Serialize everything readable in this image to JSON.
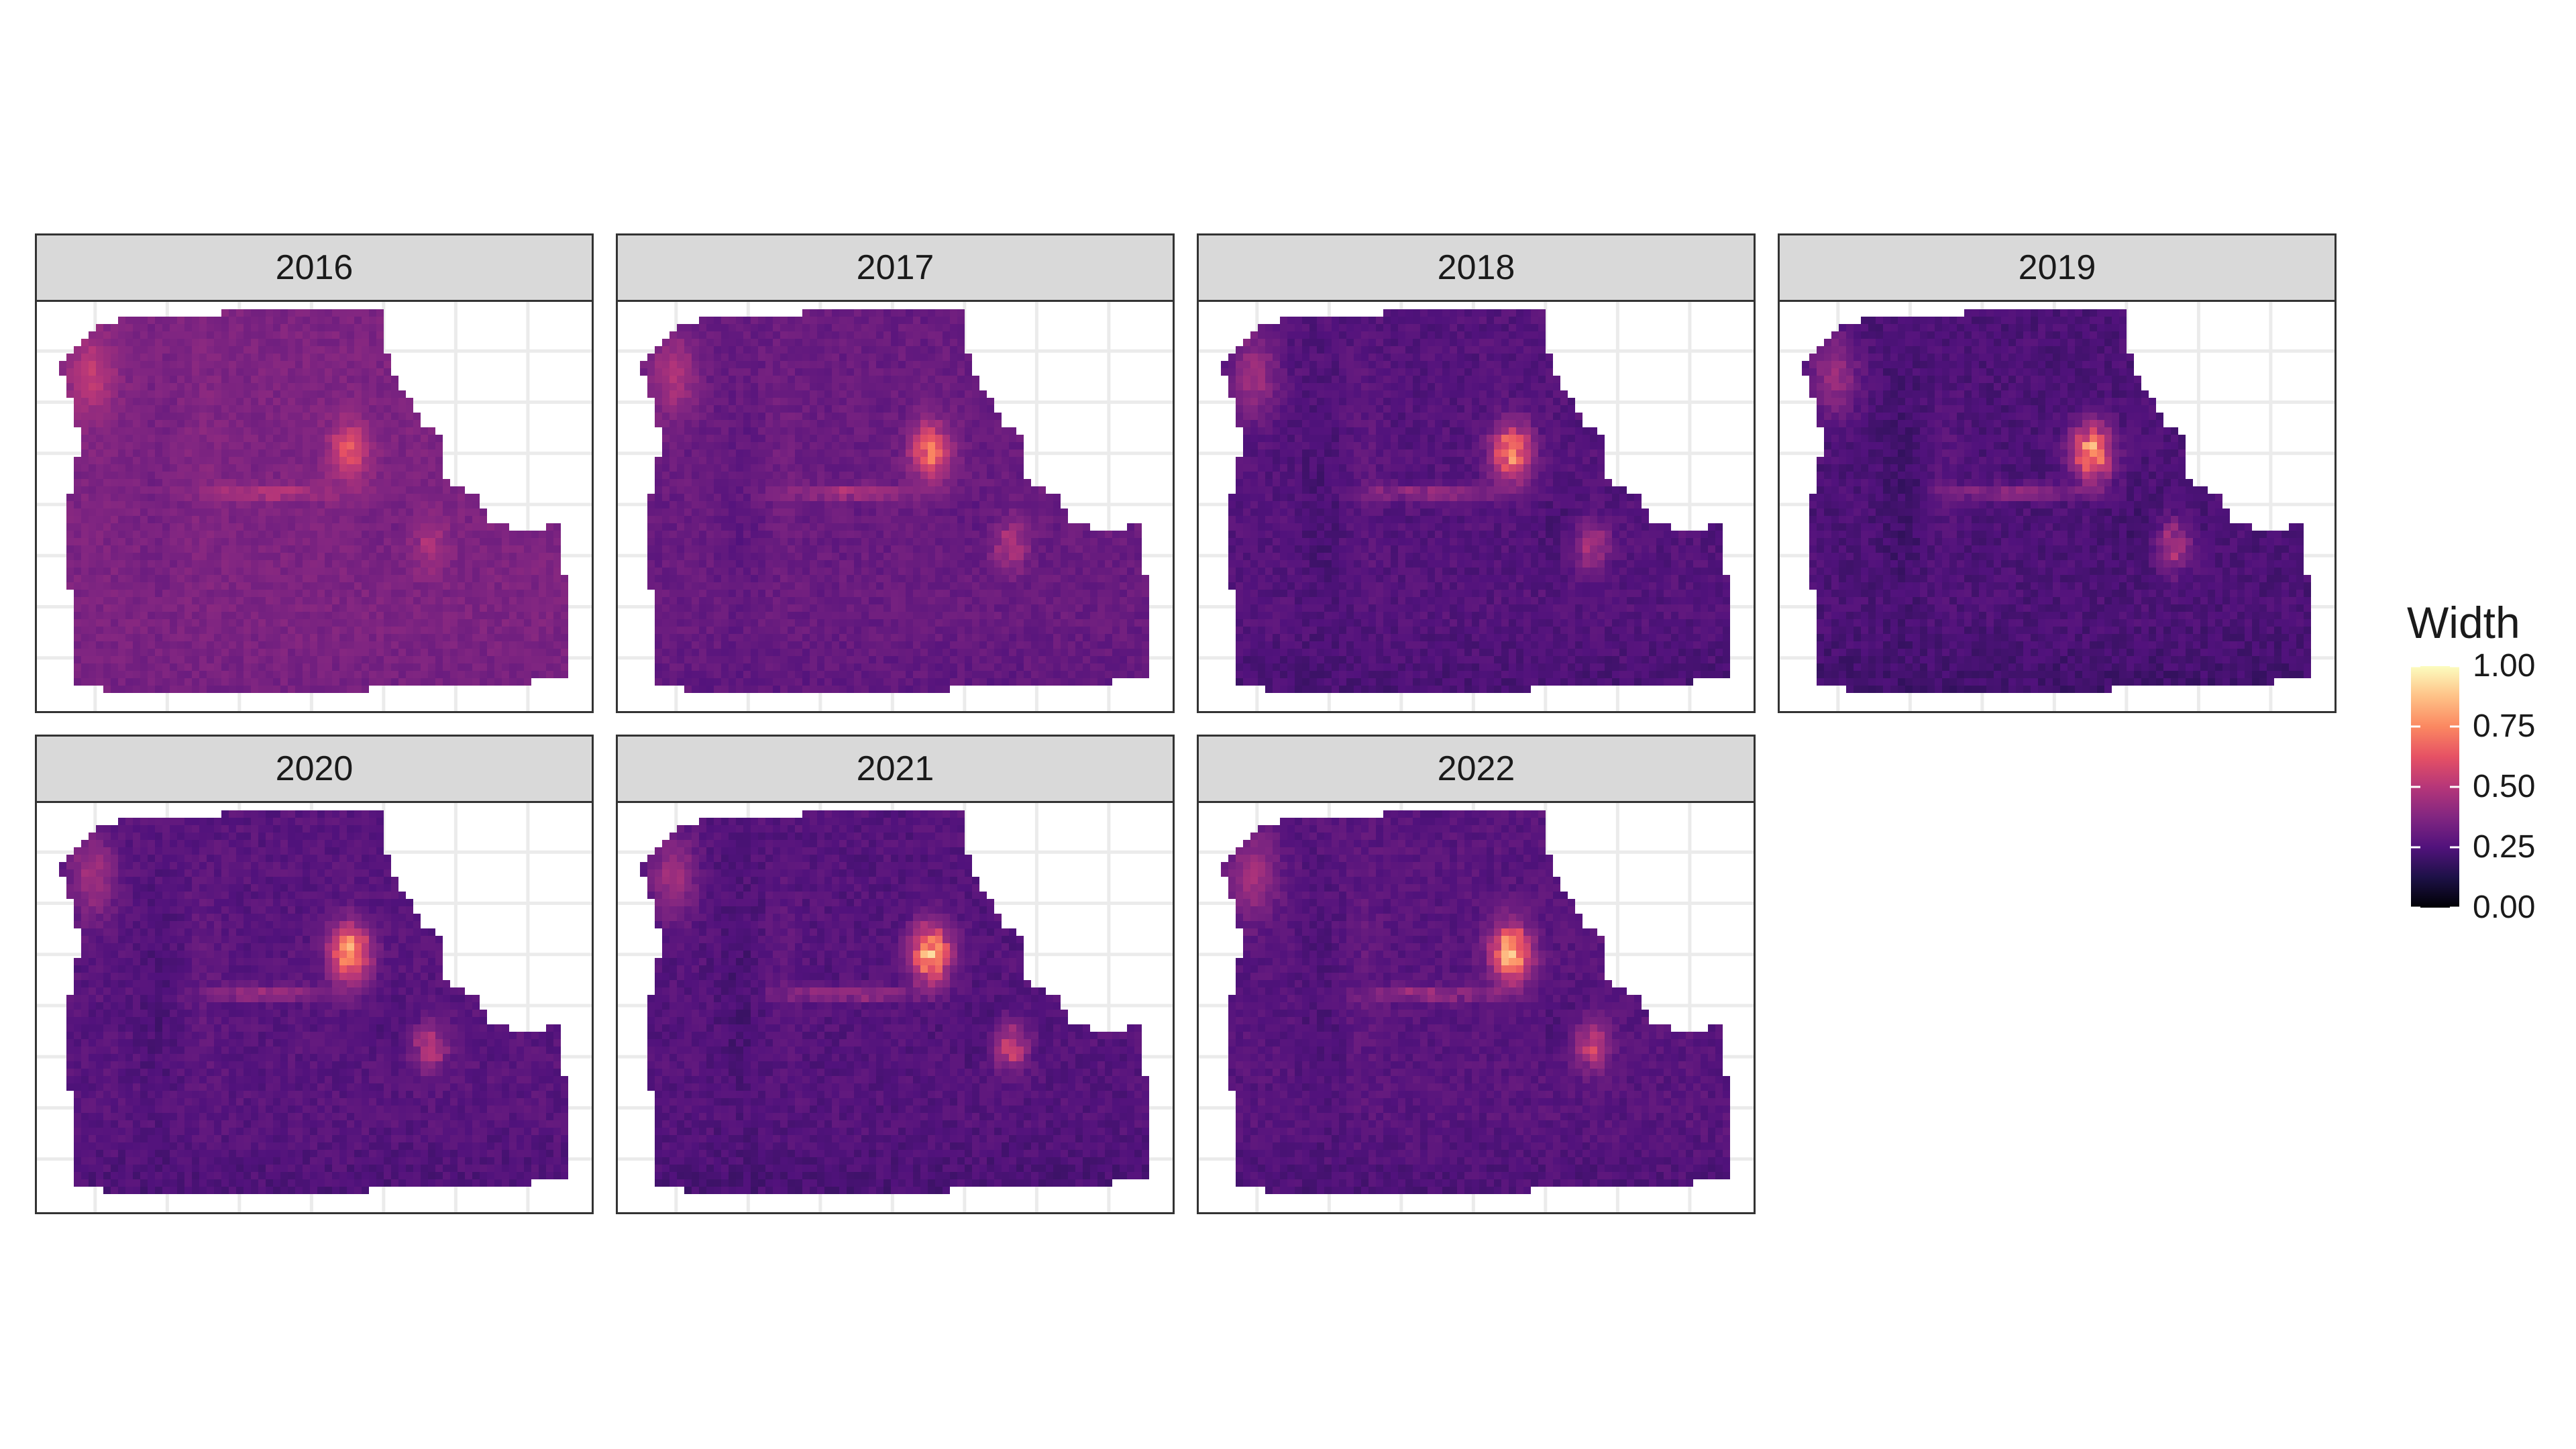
{
  "chart_data": {
    "type": "heatmap",
    "facet_variable": "year",
    "facets": [
      {
        "label": "2016",
        "intensity": 0.36,
        "hotspot_peak": 0.62
      },
      {
        "label": "2017",
        "intensity": 0.31,
        "hotspot_peak": 0.7
      },
      {
        "label": "2018",
        "intensity": 0.26,
        "hotspot_peak": 0.74
      },
      {
        "label": "2019",
        "intensity": 0.24,
        "hotspot_peak": 0.76
      },
      {
        "label": "2020",
        "intensity": 0.27,
        "hotspot_peak": 0.8
      },
      {
        "label": "2021",
        "intensity": 0.26,
        "hotspot_peak": 0.82
      },
      {
        "label": "2022",
        "intensity": 0.27,
        "hotspot_peak": 0.83
      }
    ],
    "legend": {
      "title": "Width",
      "min": 0,
      "max": 1,
      "ticks": [
        "1.00",
        "0.75",
        "0.50",
        "0.25",
        "0.00"
      ],
      "tick_values": [
        1.0,
        0.75,
        0.5,
        0.25,
        0.0
      ],
      "colormap": "magma",
      "colors": [
        "#000004",
        "#1d1147",
        "#51127c",
        "#822681",
        "#b63679",
        "#e65164",
        "#fb8861",
        "#fec287",
        "#fcfdbf"
      ],
      "placement": "right"
    },
    "grid": true,
    "axis_ticks": false
  }
}
